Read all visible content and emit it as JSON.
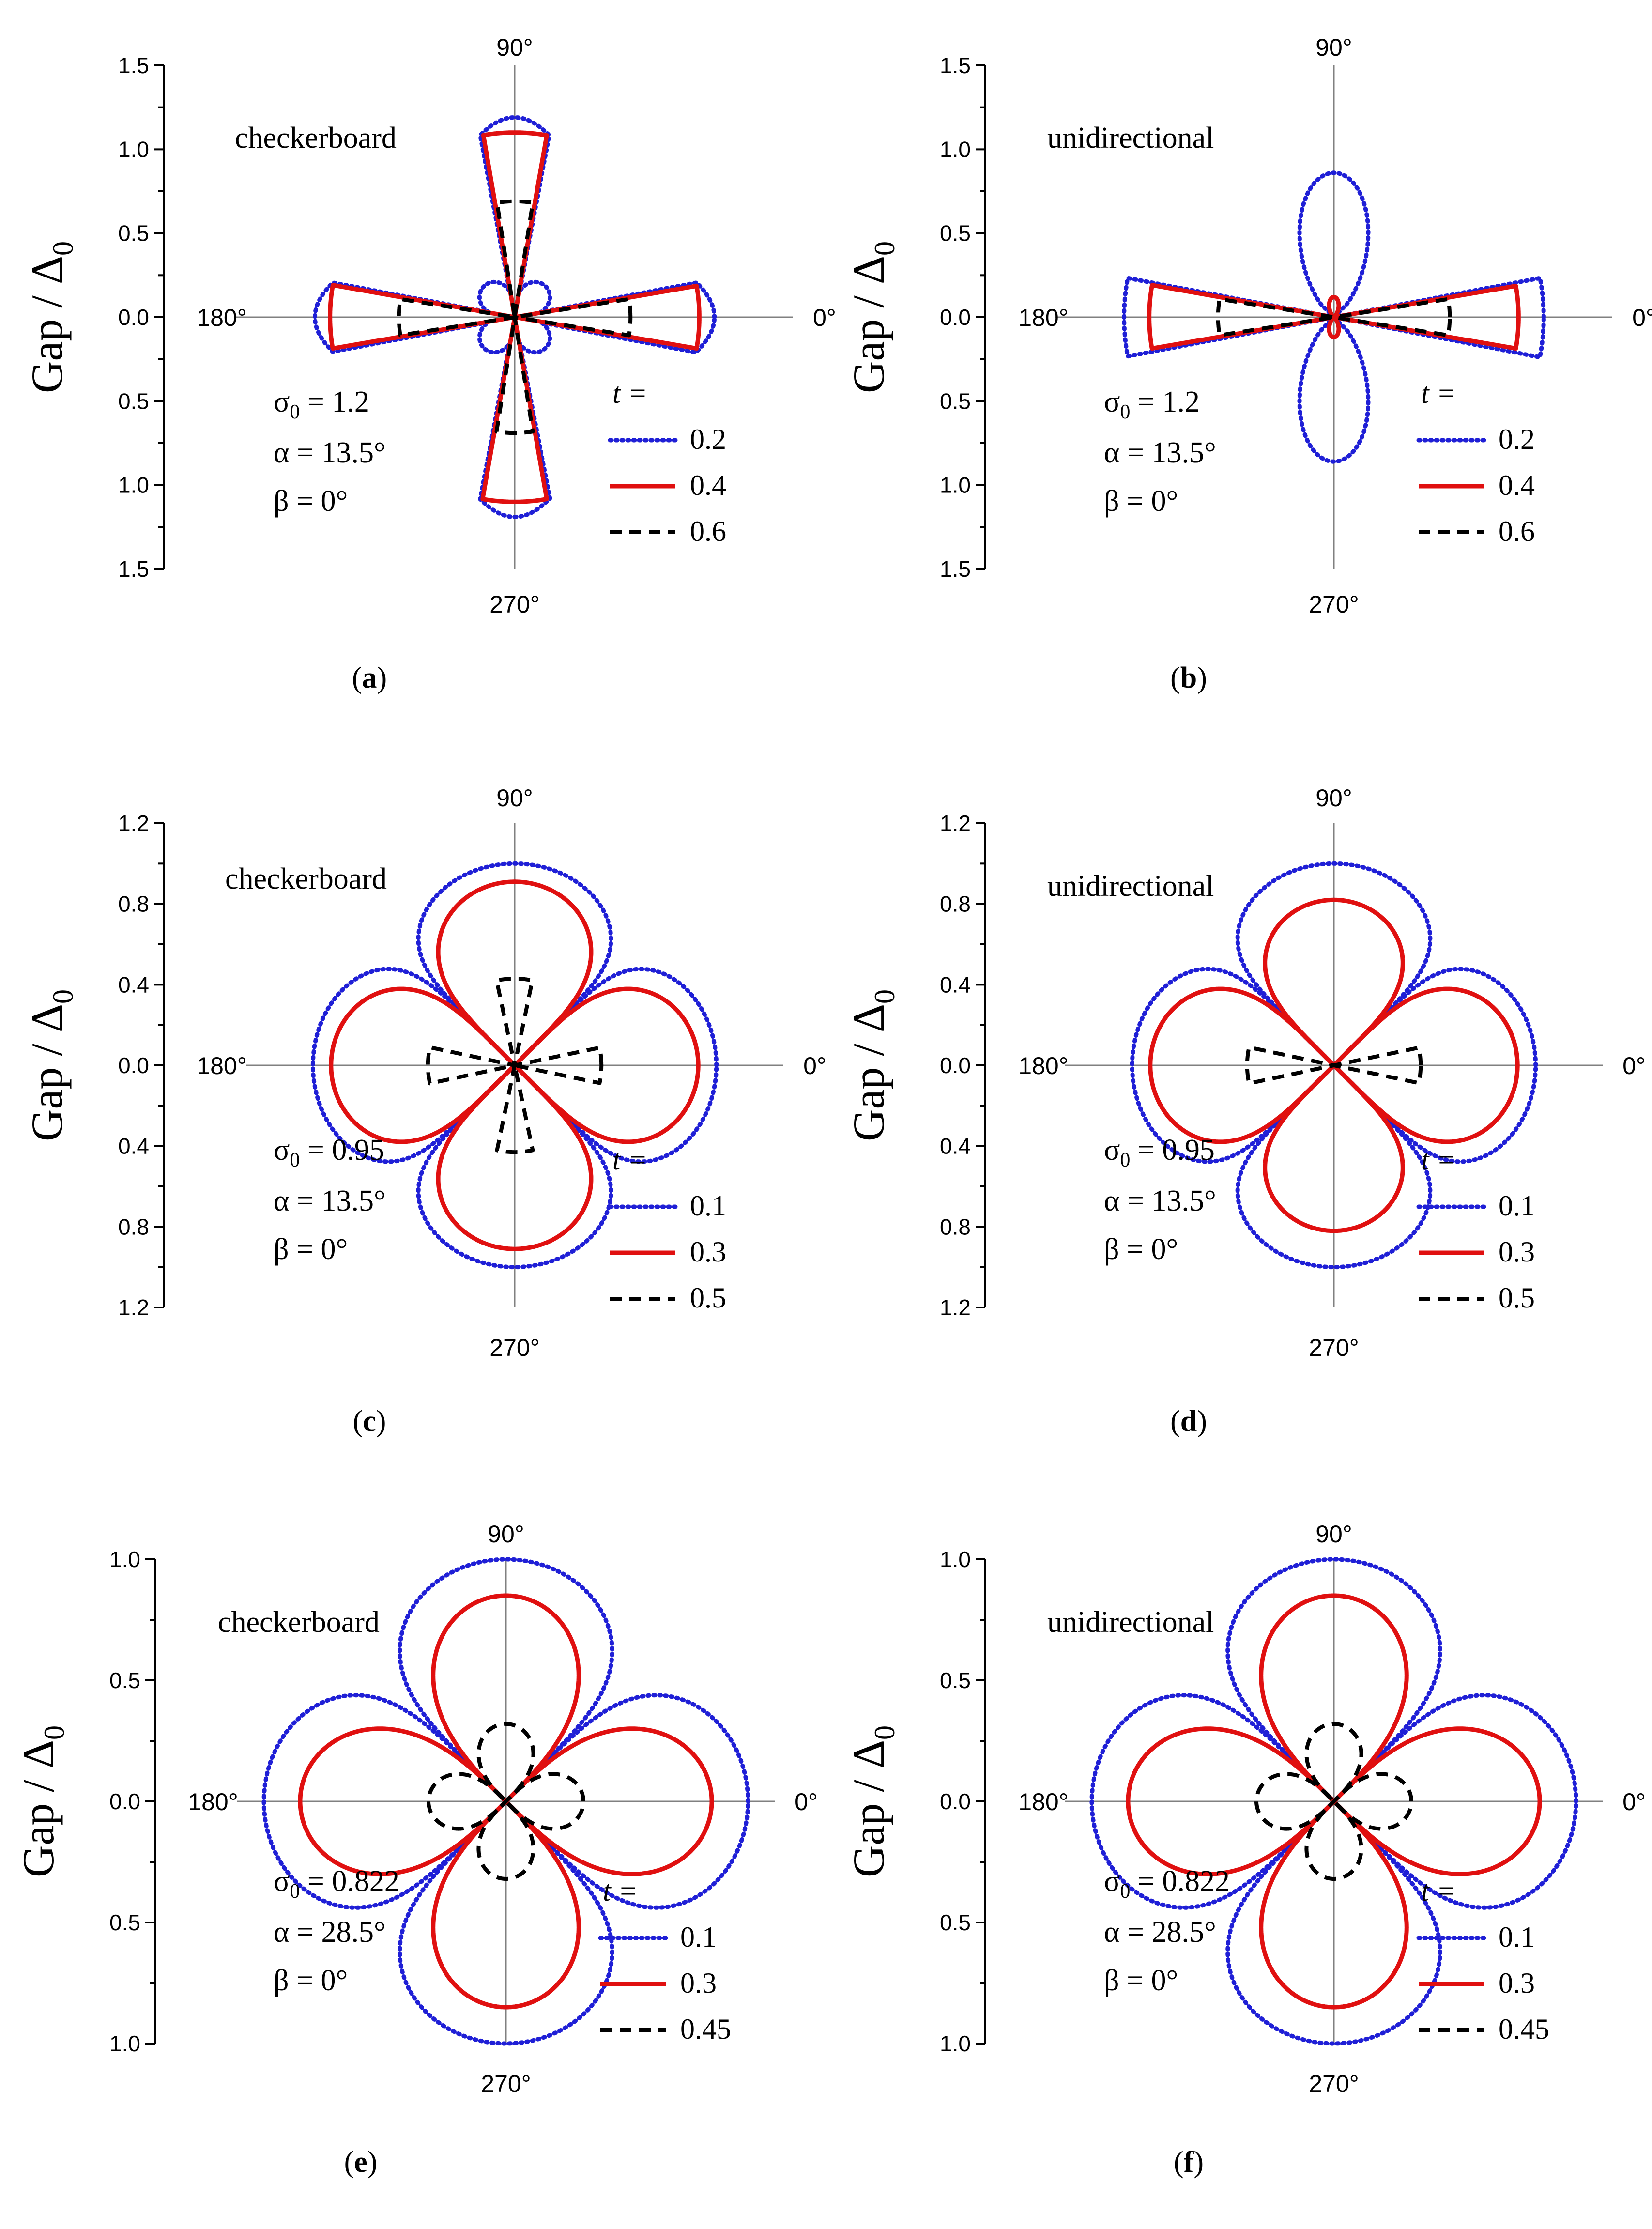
{
  "figure": {
    "angle_labels": {
      "top": "90°",
      "bottom": "270°",
      "left": "180°",
      "right": "0°"
    },
    "y_label": {
      "main": "Gap / Δ",
      "sub": "0"
    },
    "legend_title": "t =",
    "sigma_symbol": "σ",
    "sigma_sub": "0"
  },
  "chart_data": [
    {
      "id": "a",
      "type": "polar-line",
      "panel_label": "(a)",
      "label_letter": "a",
      "title": "checkerboard",
      "yticks": [
        "1.5",
        "1.0",
        "0.5",
        "0.0",
        "0.5",
        "1.0",
        "1.5"
      ],
      "rmax": 1.5,
      "sigma0": " = 1.2",
      "alpha": "α = 13.5°",
      "beta": "β = 0°",
      "series": [
        {
          "name": "0.2",
          "color": "#1f1fd6",
          "dash": "dot",
          "shape": "fan",
          "r_axis": 1.19,
          "r_cross": 0.26,
          "half_width_deg": 11,
          "r_kink": 1.1
        },
        {
          "name": "0.4",
          "color": "#e01010",
          "dash": "solid",
          "shape": "wedge",
          "r_axis": 1.1,
          "half_width_deg": 10
        },
        {
          "name": "0.6",
          "color": "#000000",
          "dash": "dash",
          "shape": "wedge",
          "r_axis": 0.69,
          "half_width_deg": 9
        }
      ]
    },
    {
      "id": "b",
      "type": "polar-line",
      "panel_label": "(b)",
      "label_letter": "b",
      "title": "unidirectional",
      "yticks": [
        "1.5",
        "1.0",
        "0.5",
        "0.0",
        "0.5",
        "1.0",
        "1.5"
      ],
      "rmax": 1.5,
      "sigma0": " = 1.2",
      "alpha": "α = 13.5°",
      "beta": "β = 0°",
      "series": [
        {
          "name": "0.2",
          "color": "#1f1fd6",
          "dash": "dot",
          "shape": "mixed",
          "r_x": 1.25,
          "r_y": 0.86,
          "half_width_deg": 11
        },
        {
          "name": "0.4",
          "color": "#e01010",
          "dash": "solid",
          "shape": "mixed",
          "r_x": 1.1,
          "r_y": 0.12,
          "half_width_deg": 10
        },
        {
          "name": "0.6",
          "color": "#000000",
          "dash": "dash",
          "shape": "xwedge",
          "r_axis": 0.69,
          "half_width_deg": 9
        }
      ]
    },
    {
      "id": "c",
      "type": "polar-line",
      "panel_label": "(c)",
      "label_letter": "c",
      "title": "checkerboard",
      "yticks": [
        "1.2",
        "0.8",
        "0.4",
        "0.0",
        "0.4",
        "0.8",
        "1.2"
      ],
      "rmax": 1.2,
      "sigma0": " = 0.95",
      "alpha": "α = 13.5°",
      "beta": "β = 0°",
      "series": [
        {
          "name": "0.1",
          "color": "#1f1fd6",
          "dash": "dot",
          "shape": "rose",
          "r_axis": 1.0,
          "power": 0.18
        },
        {
          "name": "0.3",
          "color": "#e01010",
          "dash": "solid",
          "shape": "rose",
          "r_axis": 0.91,
          "power": 0.3
        },
        {
          "name": "0.5",
          "color": "#000000",
          "dash": "dash",
          "shape": "wedge",
          "r_axis": 0.43,
          "half_width_deg": 12
        }
      ]
    },
    {
      "id": "d",
      "type": "polar-line",
      "panel_label": "(d)",
      "label_letter": "d",
      "title": "unidirectional",
      "yticks": [
        "1.2",
        "0.8",
        "0.4",
        "0.0",
        "0.4",
        "0.8",
        "1.2"
      ],
      "rmax": 1.2,
      "sigma0": " = 0.95",
      "alpha": "α = 13.5°",
      "beta": "β = 0°",
      "series": [
        {
          "name": "0.1",
          "color": "#1f1fd6",
          "dash": "dot",
          "shape": "rose",
          "r_axis": 1.0,
          "power": 0.18
        },
        {
          "name": "0.3",
          "color": "#e01010",
          "dash": "solid",
          "shape": "rose2",
          "r_x": 0.91,
          "r_y": 0.82,
          "power": 0.3
        },
        {
          "name": "0.5",
          "color": "#000000",
          "dash": "dash",
          "shape": "xwedge",
          "r_axis": 0.43,
          "half_width_deg": 12
        }
      ]
    },
    {
      "id": "e",
      "type": "polar-line",
      "panel_label": "(e)",
      "label_letter": "e",
      "title": "checkerboard",
      "yticks": [
        "1.0",
        "0.5",
        "0.0",
        "0.5",
        "1.0"
      ],
      "rmax": 1.0,
      "sigma0": " = 0.822",
      "alpha": "α = 28.5°",
      "beta": "β = 0°",
      "series": [
        {
          "name": "0.1",
          "color": "#1f1fd6",
          "dash": "dot",
          "shape": "rose",
          "r_axis": 1.0,
          "power": 0.25
        },
        {
          "name": "0.3",
          "color": "#e01010",
          "dash": "solid",
          "shape": "rose",
          "r_axis": 0.85,
          "power": 0.5
        },
        {
          "name": "0.45",
          "color": "#000000",
          "dash": "dash",
          "shape": "rose",
          "r_axis": 0.32,
          "power": 0.5
        }
      ]
    },
    {
      "id": "f",
      "type": "polar-line",
      "panel_label": "(f)",
      "label_letter": "f",
      "title": "unidirectional",
      "yticks": [
        "1.0",
        "0.5",
        "0.0",
        "0.5",
        "1.0"
      ],
      "rmax": 1.0,
      "sigma0": " = 0.822",
      "alpha": "α = 28.5°",
      "beta": "β = 0°",
      "series": [
        {
          "name": "0.1",
          "color": "#1f1fd6",
          "dash": "dot",
          "shape": "rose",
          "r_axis": 1.0,
          "power": 0.25
        },
        {
          "name": "0.3",
          "color": "#e01010",
          "dash": "solid",
          "shape": "rose",
          "r_axis": 0.85,
          "power": 0.5
        },
        {
          "name": "0.45",
          "color": "#000000",
          "dash": "dash",
          "shape": "rose",
          "r_axis": 0.32,
          "power": 0.5
        }
      ]
    }
  ]
}
